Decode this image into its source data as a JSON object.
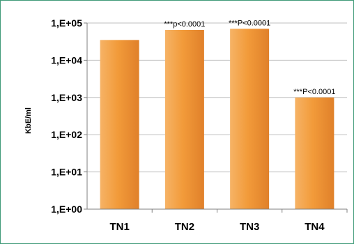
{
  "chart_data": {
    "type": "bar",
    "title": "",
    "xlabel": "",
    "ylabel": "KbE/ml",
    "y_scale": "log",
    "ylim": [
      1,
      100000
    ],
    "y_ticks": [
      1,
      10,
      100,
      1000,
      10000,
      100000
    ],
    "y_tick_labels": [
      "1,E+00",
      "1,E+01",
      "1,E+02",
      "1,E+03",
      "1,E+04",
      "1,E+05"
    ],
    "categories": [
      "TN1",
      "TN2",
      "TN3",
      "TN4"
    ],
    "values": [
      35000,
      65000,
      70000,
      1000
    ],
    "annotations": [
      "",
      "***p<0.0001",
      "***P<0.0001",
      "***P<0.0001"
    ],
    "grid": "horizontal",
    "legend": "none",
    "colors": {
      "bar_light": "#f6b366",
      "bar_mid": "#f29b3a",
      "bar_dark": "#e0802a",
      "frame_border": "#3f9a78",
      "gridline": "#bfbfbf",
      "axis": "#7f7f7f"
    }
  }
}
